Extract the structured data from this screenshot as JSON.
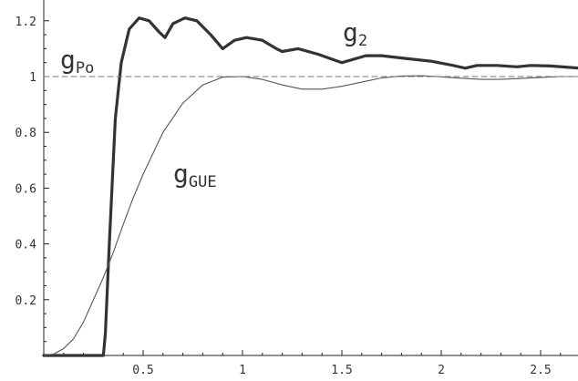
{
  "chart_data": {
    "type": "line",
    "title": "",
    "xlabel": "",
    "ylabel": "",
    "xlim": [
      0.0,
      2.7
    ],
    "ylim": [
      0.0,
      1.25
    ],
    "grid": false,
    "x_ticks": [
      "0.5",
      "1",
      "1.5",
      "2",
      "2.5"
    ],
    "y_ticks": [
      "0.2",
      "0.4",
      "0.6",
      "0.8",
      "1",
      "1.2"
    ],
    "series": [
      {
        "name": "g2",
        "label_main": "g",
        "label_sub": "2",
        "style": "thick",
        "color": "#333333",
        "points": [
          [
            0.0,
            0.0
          ],
          [
            0.3,
            0.0
          ],
          [
            0.31,
            0.08
          ],
          [
            0.33,
            0.4
          ],
          [
            0.36,
            0.85
          ],
          [
            0.39,
            1.05
          ],
          [
            0.43,
            1.17
          ],
          [
            0.48,
            1.21
          ],
          [
            0.53,
            1.2
          ],
          [
            0.58,
            1.16
          ],
          [
            0.61,
            1.14
          ],
          [
            0.65,
            1.19
          ],
          [
            0.71,
            1.21
          ],
          [
            0.77,
            1.2
          ],
          [
            0.84,
            1.15
          ],
          [
            0.9,
            1.1
          ],
          [
            0.96,
            1.13
          ],
          [
            1.02,
            1.14
          ],
          [
            1.1,
            1.13
          ],
          [
            1.17,
            1.1
          ],
          [
            1.2,
            1.09
          ],
          [
            1.28,
            1.1
          ],
          [
            1.38,
            1.08
          ],
          [
            1.5,
            1.05
          ],
          [
            1.55,
            1.06
          ],
          [
            1.62,
            1.075
          ],
          [
            1.7,
            1.075
          ],
          [
            1.82,
            1.065
          ],
          [
            1.95,
            1.055
          ],
          [
            2.06,
            1.04
          ],
          [
            2.12,
            1.03
          ],
          [
            2.18,
            1.04
          ],
          [
            2.28,
            1.04
          ],
          [
            2.38,
            1.035
          ],
          [
            2.45,
            1.04
          ],
          [
            2.55,
            1.038
          ],
          [
            2.7,
            1.03
          ]
        ]
      },
      {
        "name": "gGUE",
        "label_main": "g",
        "label_sub": "GUE",
        "style": "thin",
        "color": "#555555",
        "points": [
          [
            0.0,
            0.0
          ],
          [
            0.05,
            0.005
          ],
          [
            0.1,
            0.025
          ],
          [
            0.15,
            0.06
          ],
          [
            0.2,
            0.12
          ],
          [
            0.25,
            0.2
          ],
          [
            0.3,
            0.28
          ],
          [
            0.35,
            0.37
          ],
          [
            0.4,
            0.47
          ],
          [
            0.45,
            0.565
          ],
          [
            0.5,
            0.65
          ],
          [
            0.6,
            0.8
          ],
          [
            0.7,
            0.905
          ],
          [
            0.8,
            0.97
          ],
          [
            0.9,
            0.998
          ],
          [
            1.0,
            1.0
          ],
          [
            1.1,
            0.99
          ],
          [
            1.2,
            0.97
          ],
          [
            1.3,
            0.955
          ],
          [
            1.4,
            0.955
          ],
          [
            1.5,
            0.965
          ],
          [
            1.6,
            0.98
          ],
          [
            1.7,
            0.995
          ],
          [
            1.8,
            1.002
          ],
          [
            1.9,
            1.003
          ],
          [
            2.0,
            0.999
          ],
          [
            2.1,
            0.994
          ],
          [
            2.2,
            0.99
          ],
          [
            2.3,
            0.99
          ],
          [
            2.4,
            0.993
          ],
          [
            2.5,
            0.997
          ],
          [
            2.6,
            1.0
          ],
          [
            2.7,
            1.0
          ]
        ]
      },
      {
        "name": "gPo",
        "label_main": "g",
        "label_sub": "Po",
        "style": "dashed",
        "color": "#777777",
        "points": [
          [
            0.0,
            1.0
          ],
          [
            2.7,
            1.0
          ]
        ]
      }
    ]
  }
}
